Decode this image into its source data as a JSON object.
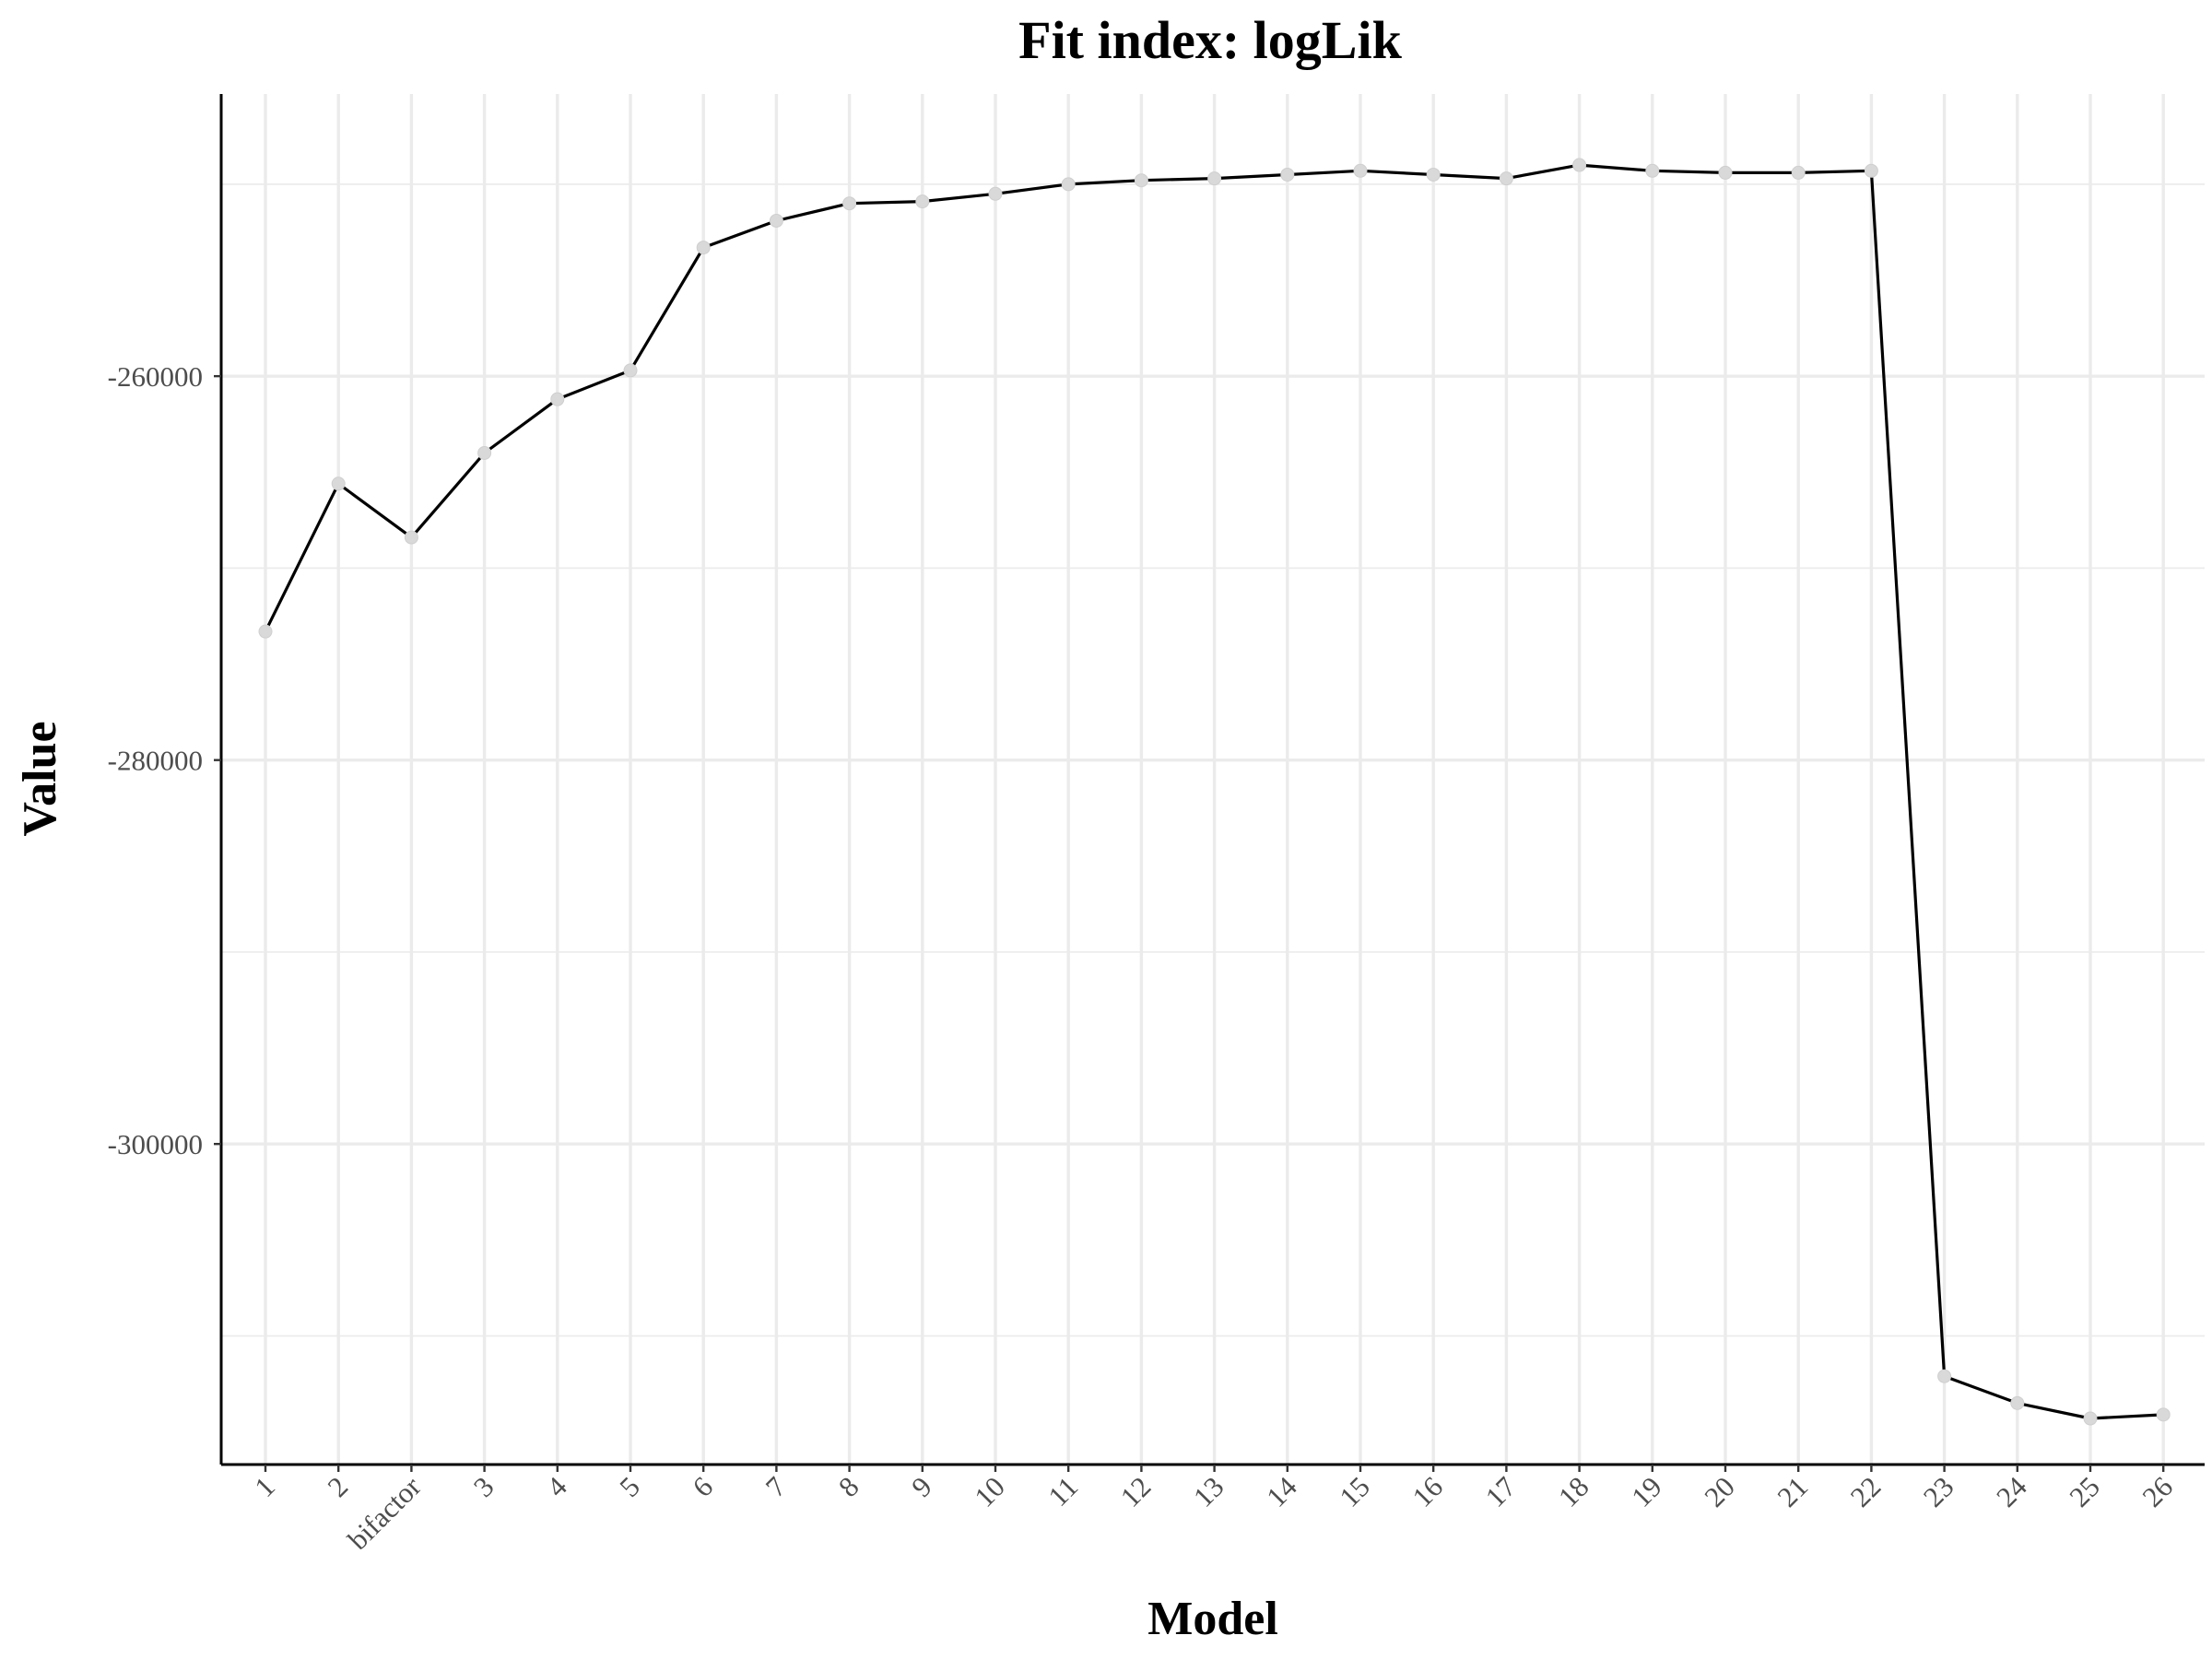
{
  "chart_data": {
    "type": "line",
    "title": "Fit index: logLik",
    "xlabel": "Model",
    "ylabel": "Value",
    "categories": [
      "1",
      "2",
      "bifactor",
      "3",
      "4",
      "5",
      "6",
      "7",
      "8",
      "9",
      "10",
      "11",
      "12",
      "13",
      "14",
      "15",
      "16",
      "17",
      "18",
      "19",
      "20",
      "21",
      "22",
      "23",
      "24",
      "25",
      "26"
    ],
    "values": [
      -273300,
      -265600,
      -268400,
      -264000,
      -261200,
      -259700,
      -253300,
      -251900,
      -251000,
      -250900,
      -250500,
      -250000,
      -249800,
      -249700,
      -249500,
      -249300,
      -249500,
      -249700,
      -249000,
      -249300,
      -249400,
      -249400,
      -249300,
      -312100,
      -313500,
      -314300,
      -314100
    ],
    "yticks": [
      -260000,
      -280000,
      -300000
    ],
    "ylim": [
      -316700,
      -245300
    ],
    "grid": true,
    "legend": "none",
    "colors": {
      "line": "#000000",
      "points": "#d9d9d9",
      "grid": "#ebebeb"
    }
  }
}
